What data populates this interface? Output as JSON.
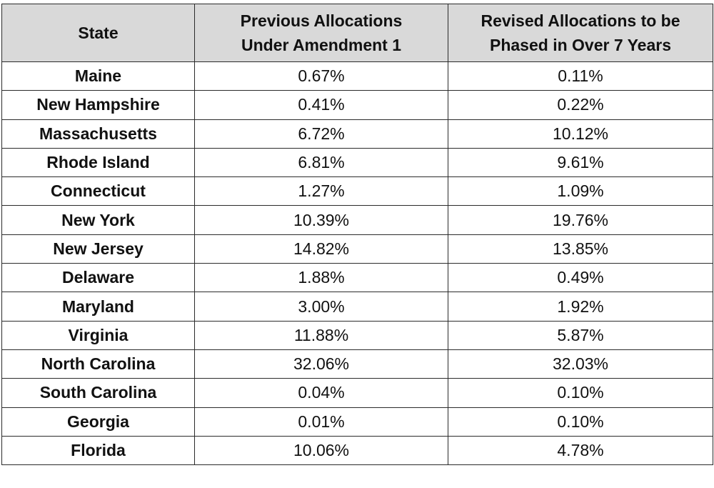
{
  "table": {
    "headers": {
      "state": "State",
      "previous": [
        "Previous Allocations",
        "Under Amendment 1"
      ],
      "revised": [
        "Revised Allocations to be",
        "Phased in Over 7 Years"
      ]
    },
    "rows": [
      {
        "state": "Maine",
        "previous": "0.67%",
        "revised": "0.11%"
      },
      {
        "state": "New Hampshire",
        "previous": "0.41%",
        "revised": "0.22%"
      },
      {
        "state": "Massachusetts",
        "previous": "6.72%",
        "revised": "10.12%"
      },
      {
        "state": "Rhode Island",
        "previous": "6.81%",
        "revised": "9.61%"
      },
      {
        "state": "Connecticut",
        "previous": "1.27%",
        "revised": "1.09%"
      },
      {
        "state": "New York",
        "previous": "10.39%",
        "revised": "19.76%"
      },
      {
        "state": "New Jersey",
        "previous": "14.82%",
        "revised": "13.85%"
      },
      {
        "state": "Delaware",
        "previous": "1.88%",
        "revised": "0.49%"
      },
      {
        "state": "Maryland",
        "previous": "3.00%",
        "revised": "1.92%"
      },
      {
        "state": "Virginia",
        "previous": "11.88%",
        "revised": "5.87%"
      },
      {
        "state": "North Carolina",
        "previous": "32.06%",
        "revised": "32.03%"
      },
      {
        "state": "South Carolina",
        "previous": "0.04%",
        "revised": "0.10%"
      },
      {
        "state": "Georgia",
        "previous": "0.01%",
        "revised": "0.10%"
      },
      {
        "state": "Florida",
        "previous": "10.06%",
        "revised": "4.78%"
      }
    ]
  },
  "colors": {
    "header_background": "#d9d9d9",
    "border": "#2b2b2b",
    "text": "#111111"
  }
}
